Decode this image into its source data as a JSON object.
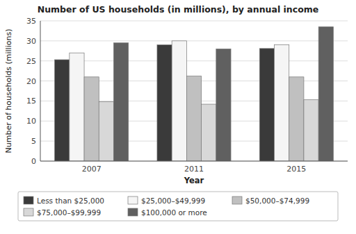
{
  "chart_data": {
    "type": "bar",
    "title": "Number of US households (in millions), by annual income",
    "xlabel": "Year",
    "ylabel": "Number of households (millions)",
    "categories": [
      "2007",
      "2011",
      "2015"
    ],
    "series": [
      {
        "name": "Less than $25,000",
        "color": "#3a3a3a",
        "values": [
          25.3,
          29.0,
          28.1
        ]
      },
      {
        "name": "$25,000–$49,999",
        "color": "#f5f5f5",
        "values": [
          27.0,
          30.0,
          29.0
        ]
      },
      {
        "name": "$50,000–$74,999",
        "color": "#c0c0c0",
        "values": [
          21.0,
          21.2,
          21.0
        ]
      },
      {
        "name": "$75,000–$99,999",
        "color": "#d8d8d8",
        "values": [
          14.8,
          14.2,
          15.3
        ]
      },
      {
        "name": "$100,000 or more",
        "color": "#606060",
        "values": [
          29.5,
          28.0,
          33.5
        ]
      }
    ],
    "ylim": [
      0,
      35
    ],
    "yticks": [
      0,
      5,
      10,
      15,
      20,
      25,
      30,
      35
    ],
    "grid": true,
    "legend": "bottom"
  }
}
